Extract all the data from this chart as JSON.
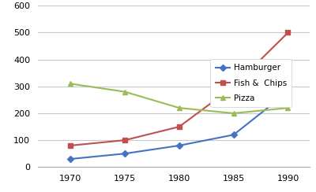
{
  "years": [
    1970,
    1975,
    1980,
    1985,
    1990
  ],
  "hamburger": [
    30,
    50,
    80,
    120,
    280
  ],
  "fish_and_chips": [
    80,
    100,
    150,
    300,
    500
  ],
  "pizza": [
    310,
    280,
    220,
    200,
    220
  ],
  "hamburger_color": "#4472C4",
  "fish_chips_color": "#C0504D",
  "pizza_color": "#9BBB59",
  "hamburger_label": "Hamburger",
  "fish_chips_label": "Fish &  Chips",
  "pizza_label": "Pizza",
  "hamburger_marker": "D",
  "fish_chips_marker": "s",
  "pizza_marker": "^",
  "ylim": [
    0,
    600
  ],
  "yticks": [
    0,
    100,
    200,
    300,
    400,
    500,
    600
  ],
  "xticks": [
    1970,
    1975,
    1980,
    1985,
    1990
  ],
  "background_color": "#ffffff",
  "grid_color": "#c8c8c8",
  "figsize": [
    4.0,
    2.44
  ],
  "dpi": 100
}
